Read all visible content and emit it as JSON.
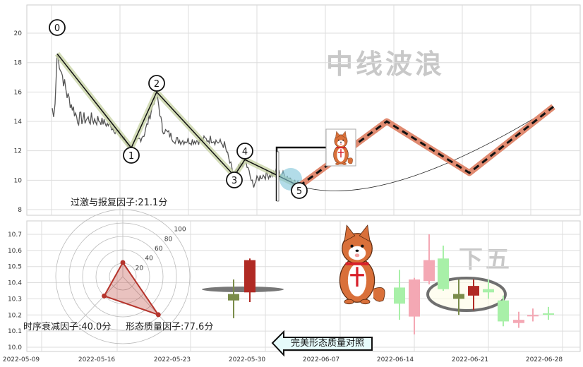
{
  "watermark": {
    "text": "中线波浪",
    "text2": "下五"
  },
  "chart_data": [
    {
      "type": "line",
      "title": "",
      "ylim": [
        8,
        21
      ],
      "yticks": [
        8,
        10,
        12,
        14,
        16,
        18,
        20
      ],
      "grid": true,
      "wave_labels": [
        "0",
        "1",
        "2",
        "3",
        "4",
        "5"
      ],
      "wave_values": [
        18.6,
        12.2,
        16.0,
        10.3,
        11.4,
        9.6
      ],
      "projection_values": [
        9.6,
        14.0,
        10.5,
        15.0
      ],
      "factor_label": "过激与报复因子:21.1分"
    },
    {
      "type": "radar",
      "rings": [
        20,
        40,
        60,
        80,
        100
      ],
      "axes": [
        {
          "name": "过激与报复因子",
          "value": 21.1
        },
        {
          "name": "时序衰减因子",
          "value": 40.0
        },
        {
          "name": "形态质量因子",
          "value": 77.6
        }
      ],
      "labels": [
        "时序衰减因子:40.0分",
        "形态质量因子:77.6分"
      ],
      "color": "#b5342c"
    },
    {
      "type": "candlestick",
      "ylim": [
        10.0,
        10.75
      ],
      "yticks": [
        "10.0",
        "10.1",
        "10.2",
        "10.3",
        "10.4",
        "10.5",
        "10.6",
        "10.7"
      ],
      "xticks": [
        "2022-05-09",
        "2022-05-16",
        "2022-05-23",
        "2022-05-30",
        "2022-06-07",
        "2022-06-14",
        "2022-06-21",
        "2022-06-28"
      ],
      "grid": true,
      "candles": [
        {
          "open": 10.33,
          "close": 10.29,
          "high": 10.42,
          "low": 10.18,
          "color": "#7a8c4a"
        },
        {
          "open": 10.34,
          "close": 10.54,
          "high": 10.55,
          "low": 10.28,
          "color": "#b02a24"
        },
        {
          "open": 10.37,
          "close": 10.27,
          "high": 10.48,
          "low": 10.17,
          "color": "#a8f0a8"
        },
        {
          "open": 10.19,
          "close": 10.42,
          "high": 10.43,
          "low": 10.08,
          "color": "#f4a8b4"
        },
        {
          "open": 10.41,
          "close": 10.54,
          "high": 10.7,
          "low": 10.39,
          "color": "#f4a8b4"
        },
        {
          "open": 10.55,
          "close": 10.36,
          "high": 10.63,
          "low": 10.35,
          "color": "#a8f0a8"
        },
        {
          "open": 10.33,
          "close": 10.3,
          "high": 10.42,
          "low": 10.2,
          "color": "#7a8c4a"
        },
        {
          "open": 10.32,
          "close": 10.38,
          "high": 10.42,
          "low": 10.23,
          "color": "#b02a24"
        },
        {
          "open": 10.36,
          "close": 10.34,
          "high": 10.42,
          "low": 10.3,
          "color": "#a8f0a8"
        },
        {
          "open": 10.29,
          "close": 10.16,
          "high": 10.32,
          "low": 10.13,
          "color": "#a8f0a8"
        },
        {
          "open": 10.15,
          "close": 10.17,
          "high": 10.22,
          "low": 10.12,
          "color": "#f4a8b4"
        },
        {
          "open": 10.2,
          "close": 10.2,
          "high": 10.24,
          "low": 10.16,
          "color": "#f4a8b4"
        },
        {
          "open": 10.21,
          "close": 10.21,
          "high": 10.25,
          "low": 10.17,
          "color": "#a8f0a8"
        }
      ],
      "compare_label": "完美形态质量对照"
    }
  ]
}
